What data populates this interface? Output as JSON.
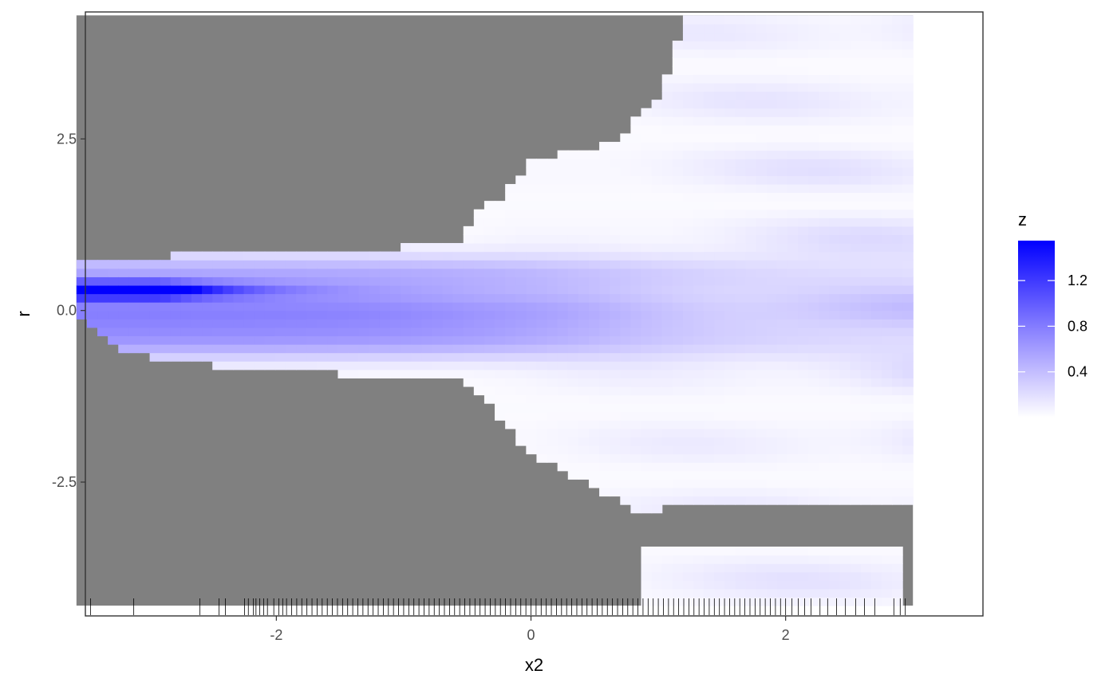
{
  "chart_data": {
    "type": "heatmap",
    "title": "",
    "xlabel": "x2",
    "ylabel": "r",
    "xlim": [
      -3.5,
      3.55
    ],
    "ylim": [
      -4.45,
      4.35
    ],
    "x_ticks": [
      -2,
      0,
      2
    ],
    "x_tick_labels": [
      "-2",
      "0",
      "2"
    ],
    "y_ticks": [
      -2.5,
      0.0,
      2.5
    ],
    "y_tick_labels": [
      "-2.5",
      "0.0",
      "2.5"
    ],
    "grid": false,
    "panel_border": true,
    "na_fill": "#808080",
    "legend": {
      "title": "z",
      "position": "right",
      "ticks": [
        0.4,
        0.8,
        1.2
      ],
      "tick_labels": [
        "0.4",
        "0.8",
        "1.2"
      ],
      "range": [
        0.0,
        1.55
      ],
      "low_color": "#ffffff",
      "high_color": "#0000ff"
    },
    "heatmap_x_range": [
      -3.57,
      3.0
    ],
    "heatmap_y_range": [
      -4.3,
      4.3
    ],
    "boundary_regions": {
      "top": [
        [
          -3.57,
          0.7
        ],
        [
          -2.8,
          0.8
        ],
        [
          -0.6,
          0.95
        ],
        [
          -0.4,
          1.45
        ],
        [
          -0.2,
          1.7
        ],
        [
          0.0,
          2.15
        ],
        [
          0.1,
          2.25
        ],
        [
          0.7,
          2.45
        ],
        [
          0.8,
          2.75
        ],
        [
          1.05,
          3.25
        ],
        [
          1.2,
          4.3
        ],
        [
          3.0,
          4.3
        ]
      ],
      "bottom": [
        [
          -3.57,
          -0.12
        ],
        [
          -3.2,
          -0.6
        ],
        [
          -2.9,
          -0.7
        ],
        [
          -2.6,
          -0.75
        ],
        [
          -2.2,
          -0.9
        ],
        [
          -0.6,
          -0.95
        ],
        [
          -0.4,
          -1.25
        ],
        [
          -0.2,
          -1.65
        ],
        [
          0.0,
          -2.1
        ],
        [
          0.2,
          -2.3
        ],
        [
          0.5,
          -2.6
        ],
        [
          0.8,
          -2.9
        ],
        [
          2.7,
          -2.8
        ],
        [
          3.0,
          -2.8
        ]
      ],
      "island_bottom_top": -3.45,
      "island_bottom_x": [
        0.9,
        2.95
      ]
    },
    "series": [
      {
        "y_center": 0.3,
        "amplitude": 1.55,
        "x_decay": -2.9,
        "width": 0.08
      },
      {
        "y_center": 0.0,
        "amplitude": 0.55,
        "x_decay": 0.3,
        "width": 0.25
      },
      {
        "y_center": 0.55,
        "amplitude": 0.3,
        "x_decay": 0.6,
        "width": 0.2
      },
      {
        "y_center": -0.45,
        "amplitude": 0.3,
        "x_decay": 0.6,
        "width": 0.2
      }
    ],
    "rug_x": [
      -3.46,
      -3.12,
      -2.6,
      -2.45,
      -2.4,
      -2.25,
      -2.22,
      -2.18,
      -2.16,
      -2.13,
      -2.1,
      -2.07,
      -2.02,
      -1.98,
      -1.95,
      -1.92,
      -1.88,
      -1.84,
      -1.8,
      -1.76,
      -1.72,
      -1.68,
      -1.64,
      -1.6,
      -1.56,
      -1.52,
      -1.48,
      -1.44,
      -1.4,
      -1.36,
      -1.32,
      -1.28,
      -1.24,
      -1.2,
      -1.16,
      -1.12,
      -1.08,
      -1.04,
      -1.0,
      -0.96,
      -0.92,
      -0.88,
      -0.84,
      -0.8,
      -0.76,
      -0.72,
      -0.68,
      -0.64,
      -0.6,
      -0.56,
      -0.52,
      -0.48,
      -0.44,
      -0.4,
      -0.36,
      -0.32,
      -0.28,
      -0.24,
      -0.2,
      -0.16,
      -0.12,
      -0.08,
      -0.04,
      0.0,
      0.04,
      0.08,
      0.12,
      0.16,
      0.2,
      0.24,
      0.28,
      0.32,
      0.36,
      0.4,
      0.44,
      0.48,
      0.52,
      0.56,
      0.6,
      0.64,
      0.68,
      0.72,
      0.76,
      0.8,
      0.84,
      0.88,
      0.92,
      0.96,
      1.0,
      1.04,
      1.08,
      1.12,
      1.16,
      1.2,
      1.24,
      1.28,
      1.32,
      1.36,
      1.4,
      1.44,
      1.48,
      1.52,
      1.56,
      1.6,
      1.64,
      1.68,
      1.72,
      1.76,
      1.8,
      1.84,
      1.88,
      1.92,
      1.96,
      2.0,
      2.05,
      2.1,
      2.15,
      2.2,
      2.27,
      2.33,
      2.4,
      2.47,
      2.55,
      2.62,
      2.7,
      2.85,
      2.9,
      2.94
    ]
  }
}
